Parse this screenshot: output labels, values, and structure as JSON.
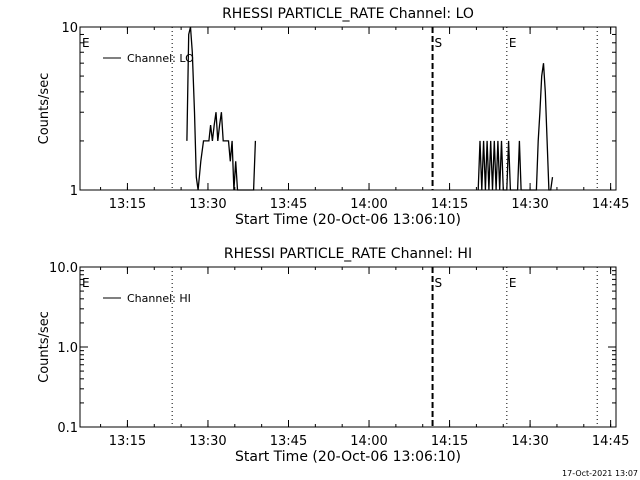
{
  "footer": {
    "timestamp": "17-Oct-2021 13:07"
  },
  "chart_data": [
    {
      "type": "line",
      "title": "RHESSI PARTICLE_RATE Channel: LO",
      "xlabel": "Start Time (20-Oct-06 13:06:10)",
      "ylabel": "Counts/sec",
      "y_scale": "log",
      "xlim": [
        "13:06:10",
        "14:46:00"
      ],
      "ylim": [
        1,
        10
      ],
      "x_ticks": [
        "13:15",
        "13:30",
        "13:45",
        "14:00",
        "14:15",
        "14:30",
        "14:45"
      ],
      "y_ticks": [
        "1",
        "10"
      ],
      "legend": {
        "position": "top-left",
        "entries": [
          "Channel: LO"
        ]
      },
      "markers": [
        {
          "label": "E",
          "time": "13:06:10",
          "style": "dotted"
        },
        {
          "label": "",
          "time": "13:23:20",
          "style": "dotted"
        },
        {
          "label": "S",
          "time": "14:11:50",
          "style": "dashed"
        },
        {
          "label": "E",
          "time": "14:25:40",
          "style": "dotted"
        },
        {
          "label": "",
          "time": "14:42:30",
          "style": "dotted"
        }
      ],
      "series": [
        {
          "name": "Channel: LO",
          "points": [
            [
              "13:26:05",
              2
            ],
            [
              "13:26:25",
              9
            ],
            [
              "13:26:45",
              10
            ],
            [
              "13:27:05",
              7
            ],
            [
              "13:27:30",
              3
            ],
            [
              "13:27:50",
              1.2
            ],
            [
              "13:28:10",
              1
            ],
            [
              "13:28:40",
              1.5
            ],
            [
              "13:29:10",
              2
            ],
            [
              "13:29:40",
              2
            ],
            [
              "13:30:10",
              2
            ],
            [
              "13:30:30",
              2.5
            ],
            [
              "13:30:50",
              2
            ],
            [
              "13:31:10",
              2.5
            ],
            [
              "13:31:30",
              3
            ],
            [
              "13:31:50",
              2
            ],
            [
              "13:32:10",
              2.5
            ],
            [
              "13:32:30",
              3
            ],
            [
              "13:32:50",
              2
            ],
            [
              "13:33:20",
              2
            ],
            [
              "13:33:50",
              2
            ],
            [
              "13:34:10",
              1.5
            ],
            [
              "13:34:30",
              2
            ],
            [
              "13:34:50",
              1
            ],
            [
              "13:35:10",
              1.5
            ],
            [
              "13:35:30",
              1
            ],
            [
              "13:38:30",
              1
            ],
            [
              "13:38:50",
              2
            ]
          ]
        },
        {
          "name": "Channel: LO",
          "points": [
            [
              "14:20:20",
              1
            ],
            [
              "14:20:40",
              2
            ],
            [
              "14:21:00",
              1
            ],
            [
              "14:21:20",
              2
            ],
            [
              "14:21:40",
              1
            ],
            [
              "14:22:00",
              2
            ],
            [
              "14:22:20",
              1
            ],
            [
              "14:22:40",
              2
            ],
            [
              "14:23:00",
              1
            ],
            [
              "14:23:20",
              2
            ],
            [
              "14:23:40",
              1
            ],
            [
              "14:24:00",
              2
            ],
            [
              "14:24:20",
              1
            ],
            [
              "14:24:40",
              2
            ],
            [
              "14:25:00",
              1
            ],
            [
              "14:25:40",
              1
            ],
            [
              "14:26:00",
              2
            ],
            [
              "14:26:20",
              1
            ],
            [
              "14:27:40",
              1
            ],
            [
              "14:28:00",
              2
            ],
            [
              "14:28:20",
              1
            ],
            [
              "14:31:10",
              1
            ],
            [
              "14:31:30",
              2
            ],
            [
              "14:31:50",
              3
            ],
            [
              "14:32:10",
              5
            ],
            [
              "14:32:30",
              6
            ],
            [
              "14:32:50",
              4
            ],
            [
              "14:33:10",
              2
            ],
            [
              "14:33:30",
              1
            ],
            [
              "14:33:50",
              1
            ],
            [
              "14:34:10",
              1.2
            ]
          ]
        }
      ]
    },
    {
      "type": "line",
      "title": "RHESSI PARTICLE_RATE Channel: HI",
      "xlabel": "Start Time (20-Oct-06 13:06:10)",
      "ylabel": "Counts/sec",
      "y_scale": "log",
      "xlim": [
        "13:06:10",
        "14:46:00"
      ],
      "ylim": [
        0.1,
        10
      ],
      "x_ticks": [
        "13:15",
        "13:30",
        "13:45",
        "14:00",
        "14:15",
        "14:30",
        "14:45"
      ],
      "y_ticks": [
        "0.1",
        "1.0",
        "10.0"
      ],
      "legend": {
        "position": "top-left",
        "entries": [
          "Channel: HI"
        ]
      },
      "markers": [
        {
          "label": "E",
          "time": "13:06:10",
          "style": "dotted"
        },
        {
          "label": "",
          "time": "13:23:20",
          "style": "dotted"
        },
        {
          "label": "S",
          "time": "14:11:50",
          "style": "dashed"
        },
        {
          "label": "E",
          "time": "14:25:40",
          "style": "dotted"
        },
        {
          "label": "",
          "time": "14:42:30",
          "style": "dotted"
        }
      ],
      "series": []
    }
  ]
}
